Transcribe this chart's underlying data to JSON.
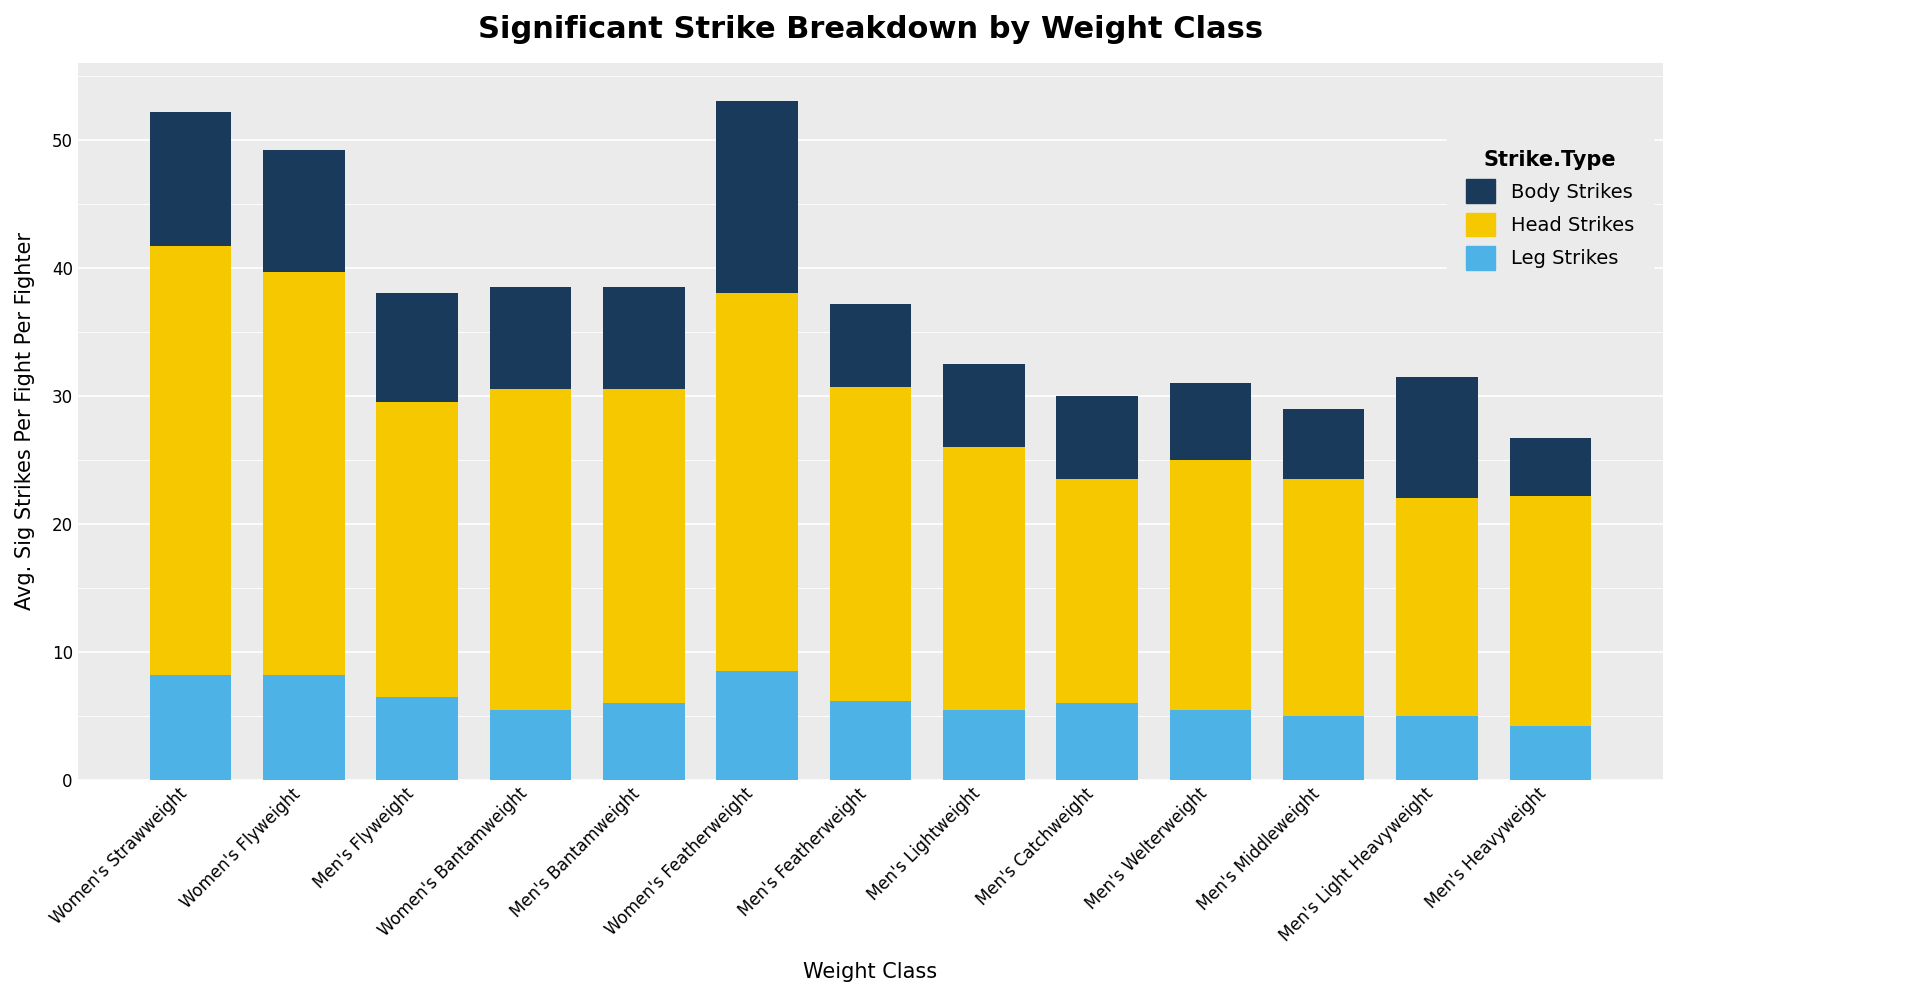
{
  "title": "Significant Strike Breakdown by Weight Class",
  "xlabel": "Weight Class",
  "ylabel": "Avg. Sig Strikes Per Fight Per Fighter",
  "categories": [
    "Women's Strawweight",
    "Women's Flyweight",
    "Men's Flyweight",
    "Women's Bantamweight",
    "Men's Bantamweight",
    "Women's Featherweight",
    "Men's Featherweight",
    "Men's Lightweight",
    "Men's Catchweight",
    "Men's Welterweight",
    "Men's Middleweight",
    "Men's Light Heavyweight",
    "Men's Heavyweight"
  ],
  "leg_strikes": [
    8.2,
    8.2,
    6.5,
    5.5,
    6.0,
    8.5,
    6.2,
    5.5,
    6.0,
    5.5,
    5.0,
    5.0,
    4.2
  ],
  "head_strikes": [
    33.5,
    31.5,
    23.0,
    25.0,
    24.5,
    29.5,
    24.5,
    20.5,
    17.5,
    19.5,
    18.5,
    17.0,
    18.0
  ],
  "body_strikes": [
    10.5,
    9.5,
    8.5,
    8.0,
    8.0,
    15.0,
    6.5,
    6.5,
    6.5,
    6.0,
    5.5,
    9.5,
    4.5
  ],
  "color_leg": "#4DB3E6",
  "color_head": "#F5C800",
  "color_body": "#1A3A5C",
  "ylim": [
    0,
    56
  ],
  "yticks": [
    0,
    10,
    20,
    30,
    40,
    50
  ],
  "panel_bg": "#EBEBEB",
  "plot_bg": "#FFFFFF",
  "grid_color": "#FFFFFF",
  "title_fontsize": 22,
  "label_fontsize": 15,
  "tick_fontsize": 12,
  "legend_title": "Strike.Type",
  "legend_labels": [
    "Body Strikes",
    "Head Strikes",
    "Leg Strikes"
  ]
}
